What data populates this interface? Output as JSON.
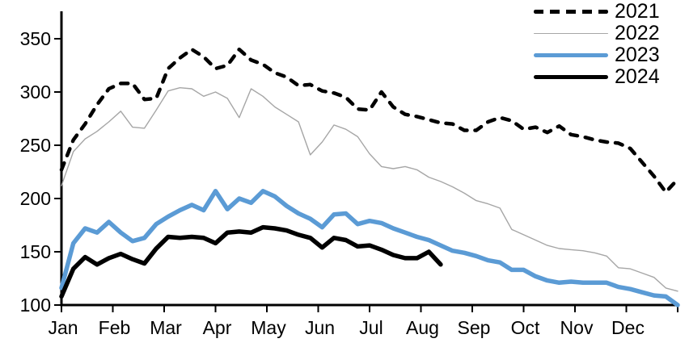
{
  "chart_data": {
    "type": "line",
    "title": "",
    "xlabel": "",
    "ylabel": "",
    "grid": false,
    "legend_position": "top-right",
    "x_axis": {
      "labels": [
        "Jan",
        "Feb",
        "Mar",
        "Apr",
        "May",
        "Jun",
        "Jul",
        "Aug",
        "Sep",
        "Oct",
        "Nov",
        "Dec"
      ],
      "unit": "weekly points across one year"
    },
    "y_axis": {
      "ticks": [
        "100",
        "150",
        "200",
        "250",
        "300",
        "350"
      ],
      "tick_values": [
        100,
        150,
        200,
        250,
        300,
        350
      ],
      "range": [
        100,
        375
      ]
    },
    "series": [
      {
        "name": "2021",
        "style": "dashed",
        "color": "#000000",
        "width": 4.5,
        "values": [
          227,
          255,
          270,
          288,
          303,
          308,
          308,
          293,
          294,
          322,
          332,
          340,
          333,
          322,
          325,
          340,
          330,
          326,
          318,
          314,
          306,
          307,
          301,
          299,
          295,
          284,
          283,
          300,
          286,
          279,
          277,
          274,
          271,
          270,
          264,
          264,
          272,
          276,
          273,
          265,
          267,
          262,
          268,
          260,
          258,
          255,
          253,
          252,
          247,
          234,
          221,
          206,
          218
        ]
      },
      {
        "name": "2022",
        "style": "solid",
        "color": "#a6a6a6",
        "width": 1.4,
        "values": [
          212,
          244,
          256,
          263,
          272,
          282,
          267,
          266,
          283,
          301,
          304,
          303,
          296,
          300,
          294,
          276,
          303,
          296,
          286,
          279,
          272,
          241,
          253,
          269,
          265,
          258,
          242,
          230,
          228,
          230,
          227,
          220,
          216,
          211,
          205,
          198,
          195,
          191,
          171,
          166,
          161,
          156,
          153,
          152,
          151,
          149,
          146,
          135,
          134,
          130,
          126,
          116,
          113
        ]
      },
      {
        "name": "2023",
        "style": "solid",
        "color": "#5b9bd5",
        "width": 5.5,
        "values": [
          116,
          158,
          172,
          168,
          178,
          168,
          160,
          163,
          176,
          183,
          189,
          194,
          189,
          207,
          190,
          200,
          196,
          207,
          202,
          193,
          186,
          181,
          173,
          185,
          186,
          176,
          179,
          177,
          172,
          168,
          164,
          161,
          156,
          151,
          149,
          146,
          142,
          140,
          133,
          133,
          127,
          123,
          121,
          122,
          121,
          121,
          121,
          117,
          115,
          112,
          109,
          108,
          100
        ]
      },
      {
        "name": "2024",
        "style": "solid",
        "color": "#000000",
        "width": 5.5,
        "values": [
          108,
          134,
          145,
          138,
          144,
          148,
          143,
          139,
          153,
          164,
          163,
          164,
          163,
          158,
          168,
          169,
          168,
          173,
          172,
          170,
          166,
          163,
          154,
          163,
          161,
          155,
          156,
          152,
          147,
          144,
          144,
          150,
          138
        ]
      }
    ]
  }
}
